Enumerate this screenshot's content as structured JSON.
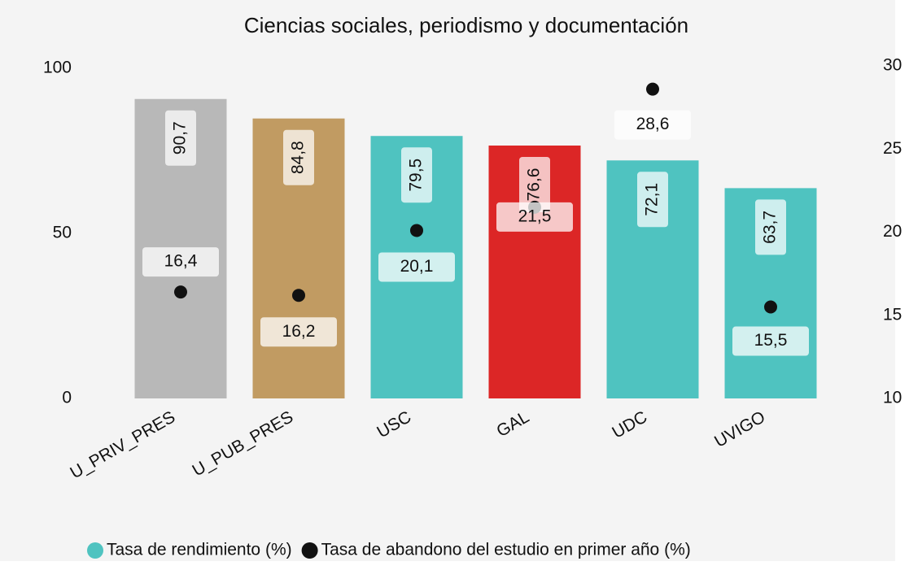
{
  "chart_data": {
    "type": "bar_dot",
    "title": "Ciencias sociales, periodismo y documentación",
    "categories": [
      "U_PRIV_PRES",
      "U_PUB_PRES",
      "USC",
      "GAL",
      "UDC",
      "UVIGO"
    ],
    "series": [
      {
        "name": "Tasa de rendimiento (%)",
        "color": "#4fc3c0",
        "colors": [
          "#b8b8b8",
          "#c19b62",
          "#4fc3c0",
          "#dc2626",
          "#4fc3c0",
          "#4fc3c0"
        ],
        "values": [
          90.7,
          84.8,
          79.5,
          76.6,
          72.1,
          63.7
        ],
        "value_labels": [
          "90,7",
          "84,8",
          "79,5",
          "76,6",
          "72,1",
          "63,7"
        ]
      },
      {
        "name": "Tasa de abandono del estudio en primer año (%)",
        "color": "#111111",
        "axis": "y2",
        "values": [
          16.4,
          16.2,
          20.1,
          21.5,
          28.6,
          15.5
        ],
        "value_labels": [
          "16,4",
          "16,2",
          "20,1",
          "21,5",
          "28,6",
          "15,5"
        ]
      }
    ],
    "ylim": [
      0,
      100
    ],
    "yticks": [
      0,
      50,
      100
    ],
    "y2lim": [
      10,
      30
    ],
    "y2ticks": [
      10,
      15,
      20,
      25,
      30
    ]
  }
}
